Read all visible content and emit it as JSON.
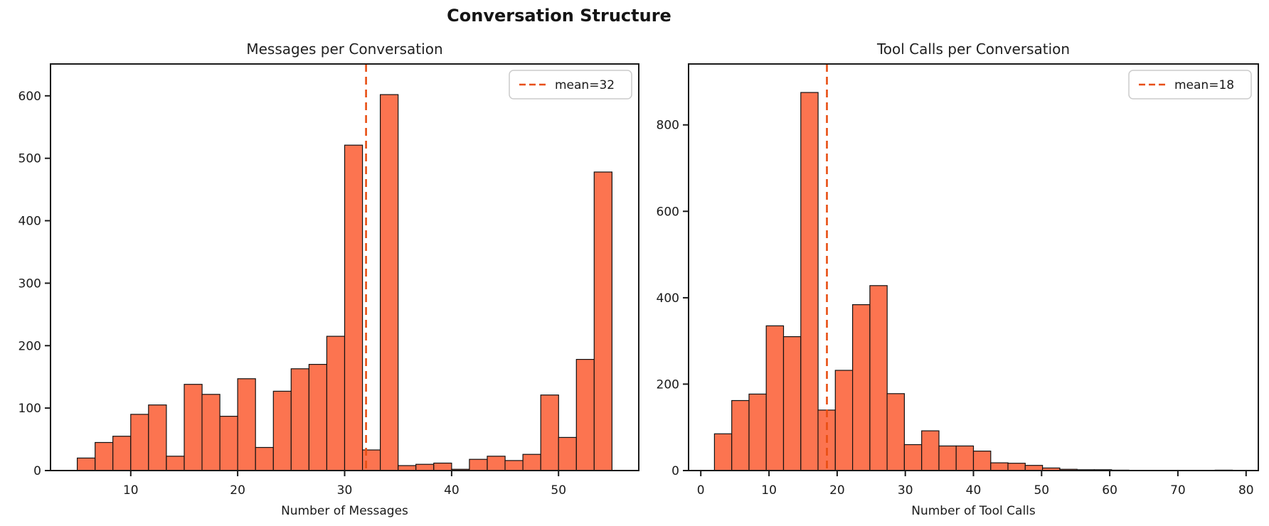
{
  "suptitle": "Conversation Structure",
  "chart_data": {
    "type": "bar",
    "subtype": "histogram",
    "suptitle": "Conversation Structure",
    "grid": false,
    "charts": [
      {
        "name": "messages-histogram",
        "title": "Messages per Conversation",
        "xlabel": "Number of Messages",
        "legend_label": "mean=32",
        "legend_position": "upper right",
        "mean_x": 32,
        "bin_start": 5,
        "bin_width": 1.66667,
        "values": [
          20,
          45,
          55,
          90,
          105,
          23,
          138,
          122,
          87,
          147,
          37,
          127,
          163,
          170,
          215,
          521,
          33,
          602,
          8,
          10,
          12,
          2,
          18,
          23,
          16,
          26,
          121,
          53,
          178,
          478
        ],
        "xticks": [
          10,
          20,
          30,
          40,
          50
        ],
        "yticks": [
          0,
          100,
          200,
          300,
          400,
          500,
          600
        ],
        "xlim": [
          2.5,
          57.5
        ],
        "ylim": [
          0,
          651
        ]
      },
      {
        "name": "tool-calls-histogram",
        "title": "Tool Calls per Conversation",
        "xlabel": "Number of Tool Calls",
        "legend_label": "mean=18",
        "legend_position": "upper right",
        "mean_x": 18.5,
        "bin_start": 2,
        "bin_width": 2.53333,
        "values": [
          85,
          162,
          177,
          335,
          310,
          875,
          140,
          232,
          384,
          428,
          178,
          60,
          92,
          57,
          57,
          45,
          18,
          17,
          12,
          6,
          3,
          2,
          2,
          1,
          0,
          0,
          0,
          0,
          0,
          1
        ],
        "xticks": [
          0,
          10,
          20,
          30,
          40,
          50,
          60,
          70,
          80
        ],
        "yticks": [
          0,
          200,
          400,
          600,
          800
        ],
        "xlim": [
          -1.8,
          81.8
        ],
        "ylim": [
          0,
          941
        ]
      }
    ],
    "colors": {
      "bar_fill": "#fc7450",
      "bar_edge": "#111111",
      "mean_line": "#e84e12",
      "frame": "#1a1a1a",
      "text": "#1a1a1a",
      "background": "#ffffff"
    }
  }
}
